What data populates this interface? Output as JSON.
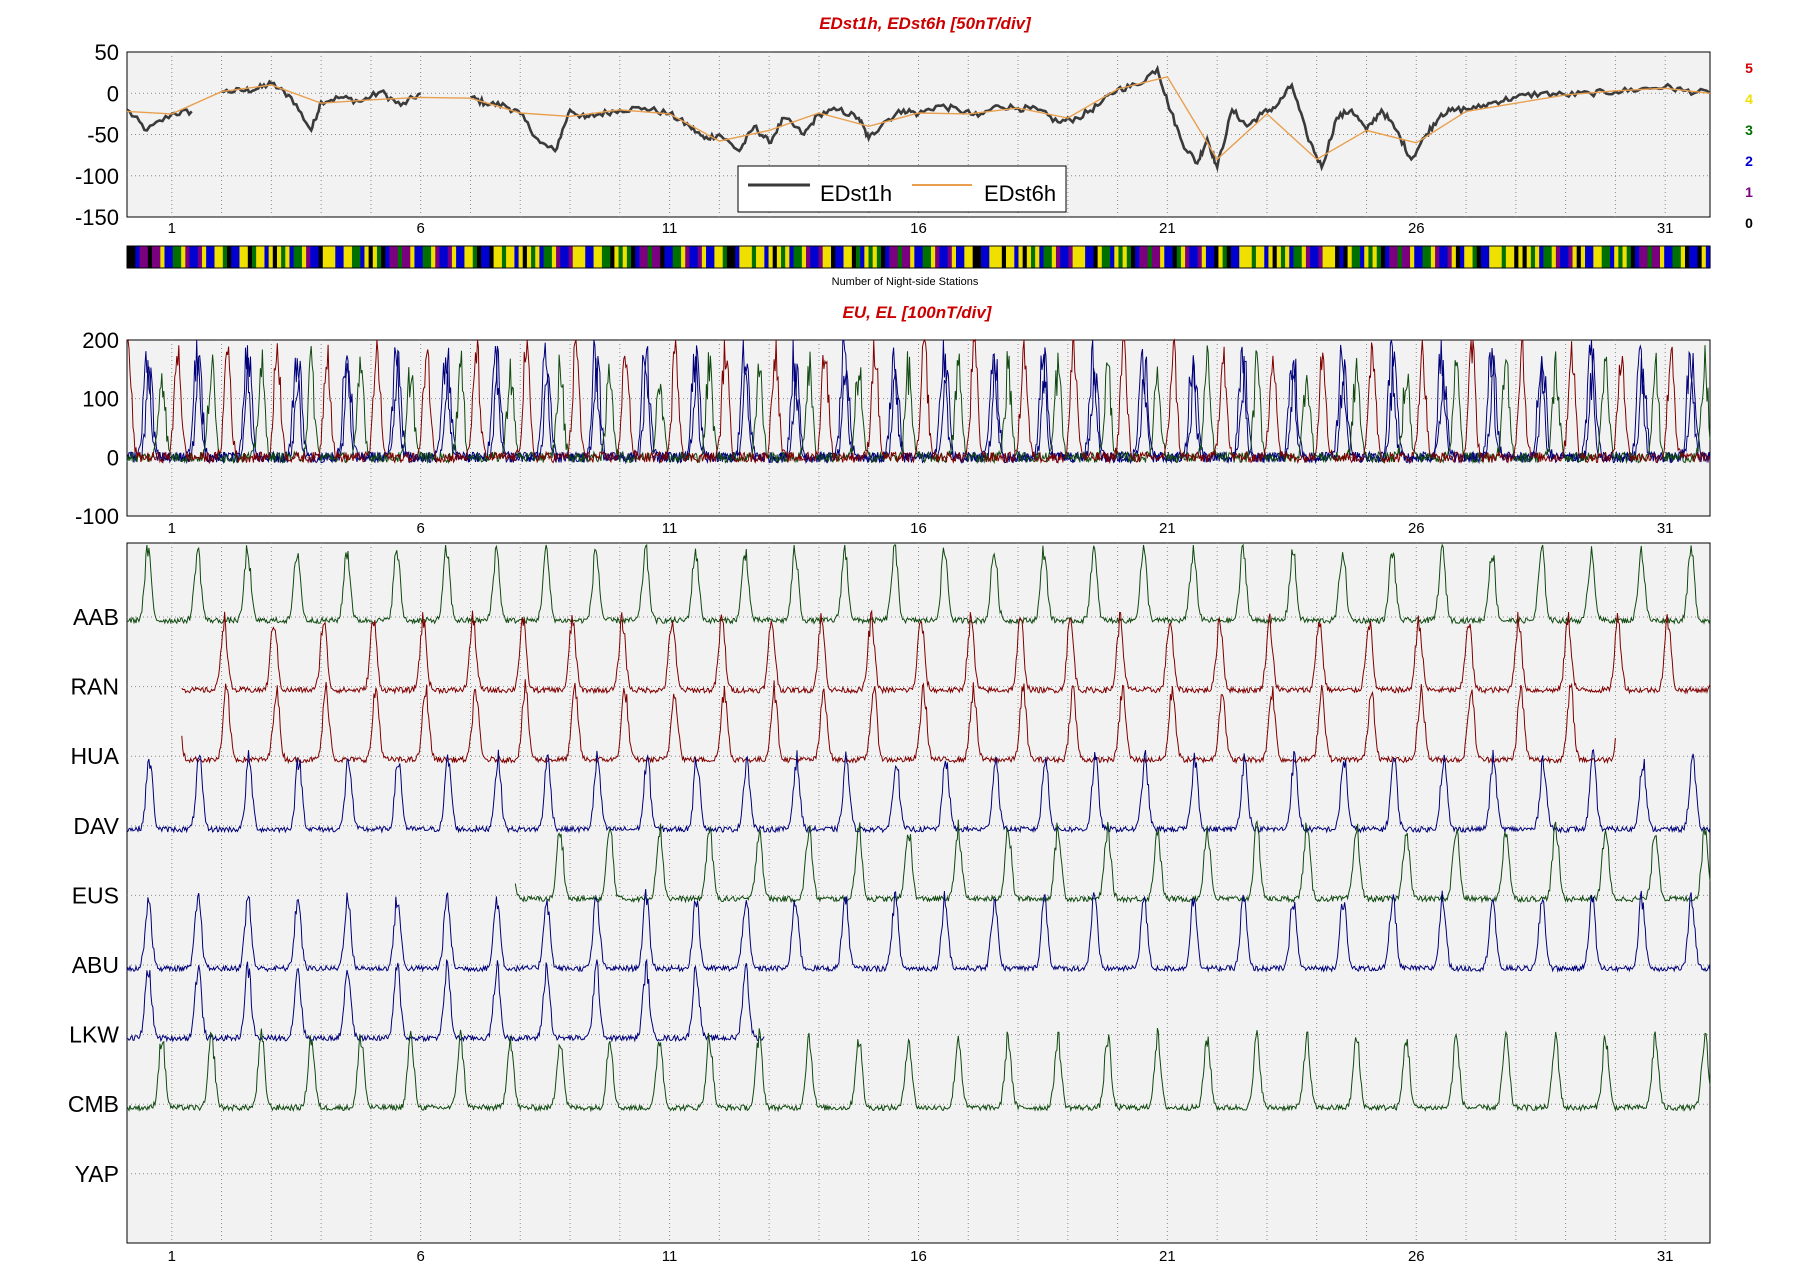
{
  "chart_data": [
    {
      "type": "line",
      "title": "EDst1h, EDst6h [50nT/div]",
      "ylim": [
        -150,
        50
      ],
      "yticks": [
        50,
        0,
        -50,
        -100,
        -150
      ],
      "xlim": [
        0.1,
        31.9
      ],
      "xticks": [
        1,
        6,
        11,
        16,
        21,
        26,
        31
      ],
      "grid": true,
      "legend_position": "bottom-center",
      "series": [
        {
          "name": "EDst1h",
          "color": "#3a3a3a",
          "x": [
            0.1,
            0.5,
            1.0,
            1.4,
            1.6,
            2.0,
            2.4,
            2.7,
            3.0,
            3.4,
            3.8,
            4.0,
            4.4,
            4.8,
            5.2,
            5.6,
            6.0,
            6.5,
            7.0,
            7.3,
            7.7,
            8.0,
            8.4,
            8.7,
            9.0,
            9.3,
            9.6,
            10.0,
            10.5,
            11.0,
            11.4,
            11.7,
            12.0,
            12.4,
            12.7,
            13.0,
            13.3,
            13.7,
            14.0,
            14.4,
            14.8,
            15.0,
            15.3,
            15.7,
            16.0,
            16.4,
            16.8,
            17.2,
            17.6,
            18.0,
            18.4,
            18.8,
            19.2,
            19.6,
            20.0,
            20.4,
            20.8,
            21.0,
            21.3,
            21.6,
            21.8,
            22.0,
            22.3,
            22.6,
            22.9,
            23.2,
            23.5,
            23.8,
            24.1,
            24.4,
            24.7,
            25.0,
            25.3,
            25.6,
            25.9,
            26.2,
            26.5,
            26.8,
            27.2,
            27.6,
            28.0,
            28.5,
            29.0,
            29.5,
            30.0,
            30.5,
            31.0,
            31.4,
            31.9
          ],
          "values": [
            -20,
            -45,
            -25,
            -22,
            null,
            2,
            3,
            5,
            12,
            -5,
            -45,
            -10,
            -5,
            -10,
            2,
            -15,
            0,
            null,
            -5,
            -12,
            -15,
            -25,
            -60,
            -70,
            -20,
            -30,
            -25,
            -20,
            -18,
            -25,
            -40,
            -55,
            -50,
            -70,
            -40,
            -60,
            -30,
            -50,
            -25,
            -20,
            -30,
            -55,
            -35,
            -20,
            -25,
            -15,
            -20,
            -28,
            -15,
            -18,
            -20,
            -35,
            -30,
            -15,
            5,
            10,
            30,
            -10,
            -60,
            -85,
            -55,
            -90,
            -20,
            -40,
            -25,
            -15,
            10,
            -50,
            -90,
            -30,
            -20,
            -45,
            -20,
            -45,
            -80,
            -50,
            -25,
            -20,
            -18,
            -10,
            -5,
            0,
            -2,
            0,
            2,
            5,
            8,
            3,
            0
          ],
          "gaps_after_index": [
            3
          ]
        },
        {
          "name": "EDst6h",
          "color": "#e8a050",
          "x": [
            0.1,
            1.0,
            2.0,
            3.0,
            4.0,
            5.0,
            6.0,
            7.0,
            8.0,
            9.0,
            10.0,
            11.0,
            12.0,
            13.0,
            14.0,
            15.0,
            16.0,
            17.0,
            18.0,
            19.0,
            20.0,
            21.0,
            22.0,
            23.0,
            24.0,
            25.0,
            26.0,
            27.0,
            28.0,
            29.0,
            30.0,
            31.0,
            31.9
          ],
          "values": [
            -22,
            -25,
            2,
            10,
            -12,
            -8,
            -5,
            -6,
            -24,
            -28,
            -20,
            -25,
            -58,
            -45,
            -24,
            -40,
            -24,
            -25,
            -18,
            -30,
            5,
            20,
            -80,
            -25,
            -80,
            -45,
            -60,
            -22,
            -12,
            -2,
            3,
            6,
            0
          ]
        }
      ],
      "count_bar": {
        "label": "Number of Night-side Stations",
        "levels": [
          {
            "value": "5",
            "color": "#d40000"
          },
          {
            "value": "4",
            "color": "#f0e000"
          },
          {
            "value": "3",
            "color": "#007000"
          },
          {
            "value": "2",
            "color": "#0000d0"
          },
          {
            "value": "1",
            "color": "#7a0080"
          },
          {
            "value": "0",
            "color": "#000000"
          }
        ]
      }
    },
    {
      "type": "line",
      "title": "EU, EL   [100nT/div]",
      "ylim": [
        -100,
        200
      ],
      "yticks": [
        200,
        100,
        0,
        -100
      ],
      "xlim": [
        0.1,
        31.9
      ],
      "xticks": [
        1,
        6,
        11,
        16,
        21,
        26,
        31
      ],
      "grid": true
    },
    {
      "type": "line",
      "xlim": [
        0.1,
        31.9
      ],
      "xticks": [
        1,
        6,
        11,
        16,
        21,
        26,
        31
      ],
      "grid": true,
      "stations": [
        {
          "name": "AAB",
          "color": "#104a10"
        },
        {
          "name": "RAN",
          "color": "#800000"
        },
        {
          "name": "HUA",
          "color": "#800000"
        },
        {
          "name": "DAV",
          "color": "#00007a"
        },
        {
          "name": "EUS",
          "color": "#104a10"
        },
        {
          "name": "ABU",
          "color": "#00007a"
        },
        {
          "name": "LKW",
          "color": "#00007a"
        },
        {
          "name": "CMB",
          "color": "#104a10"
        },
        {
          "name": "YAP",
          "color": "#104a10"
        }
      ]
    }
  ]
}
